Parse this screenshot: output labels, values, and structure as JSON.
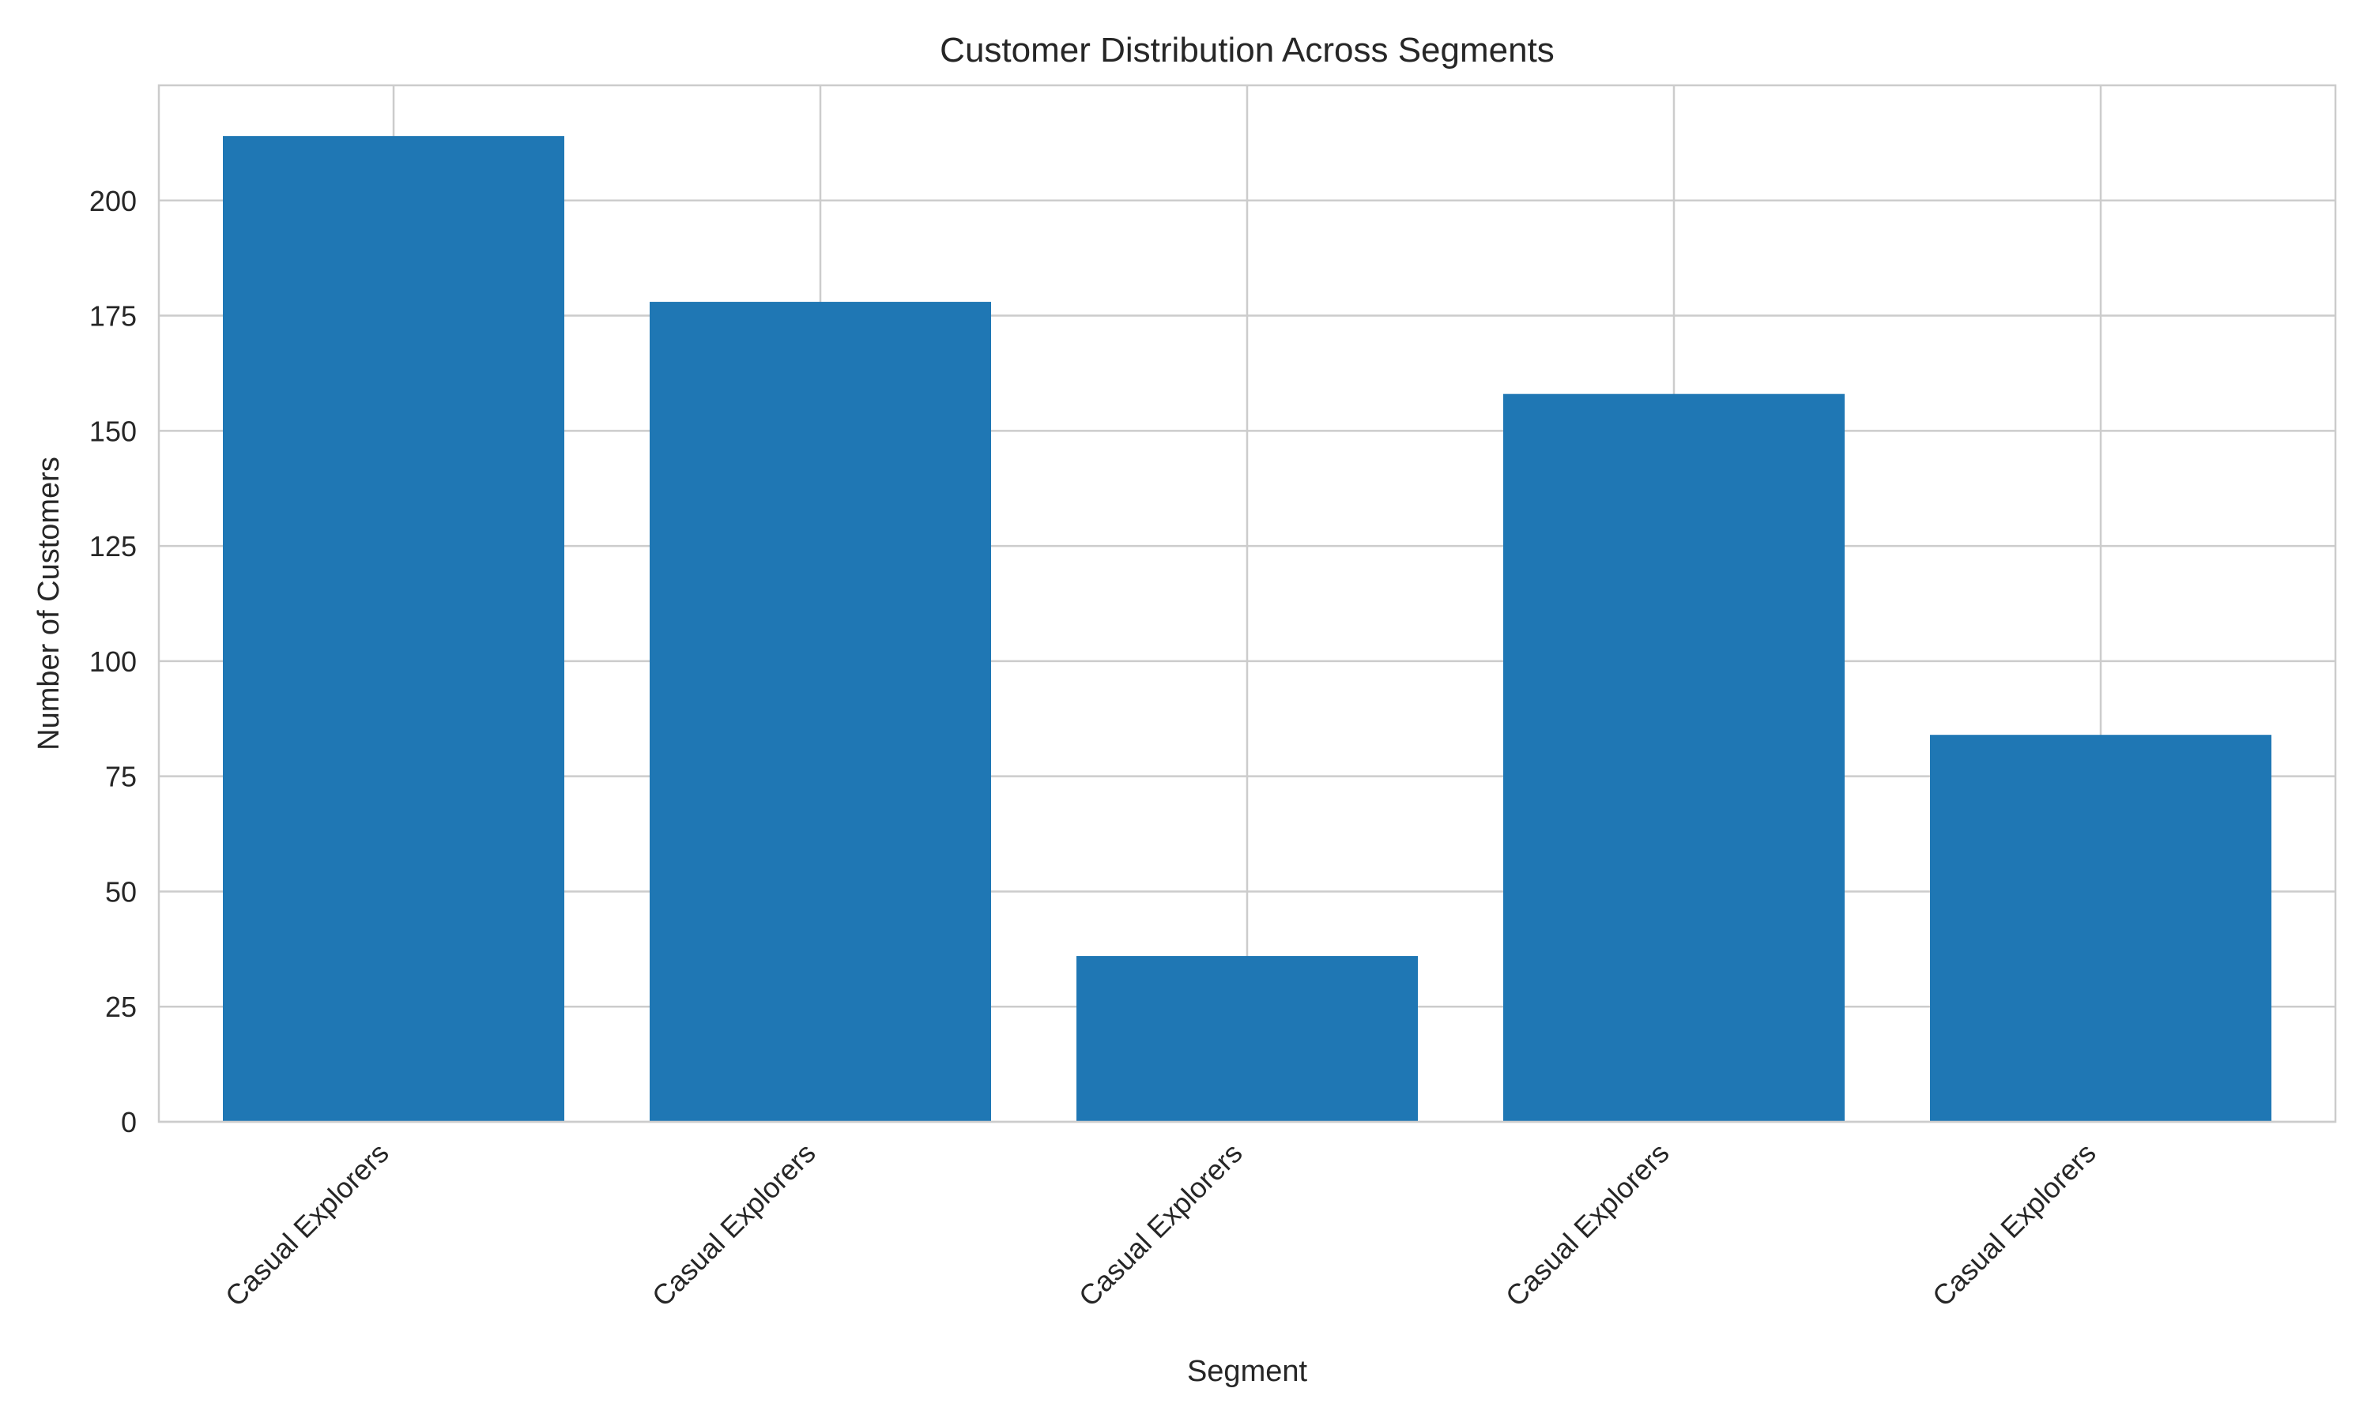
{
  "chart_data": {
    "type": "bar",
    "title": "Customer Distribution Across Segments",
    "xlabel": "Segment",
    "ylabel": "Number of Customers",
    "categories": [
      "Casual Explorers",
      "Casual Explorers",
      "Casual Explorers",
      "Casual Explorers",
      "Casual Explorers"
    ],
    "values": [
      214,
      178,
      36,
      158,
      84
    ],
    "ylim": [
      0,
      225
    ],
    "yticks": [
      0,
      25,
      50,
      75,
      100,
      125,
      150,
      175,
      200
    ],
    "grid": true,
    "bar_color": "#1f77b4",
    "grid_color": "#cccccc"
  }
}
